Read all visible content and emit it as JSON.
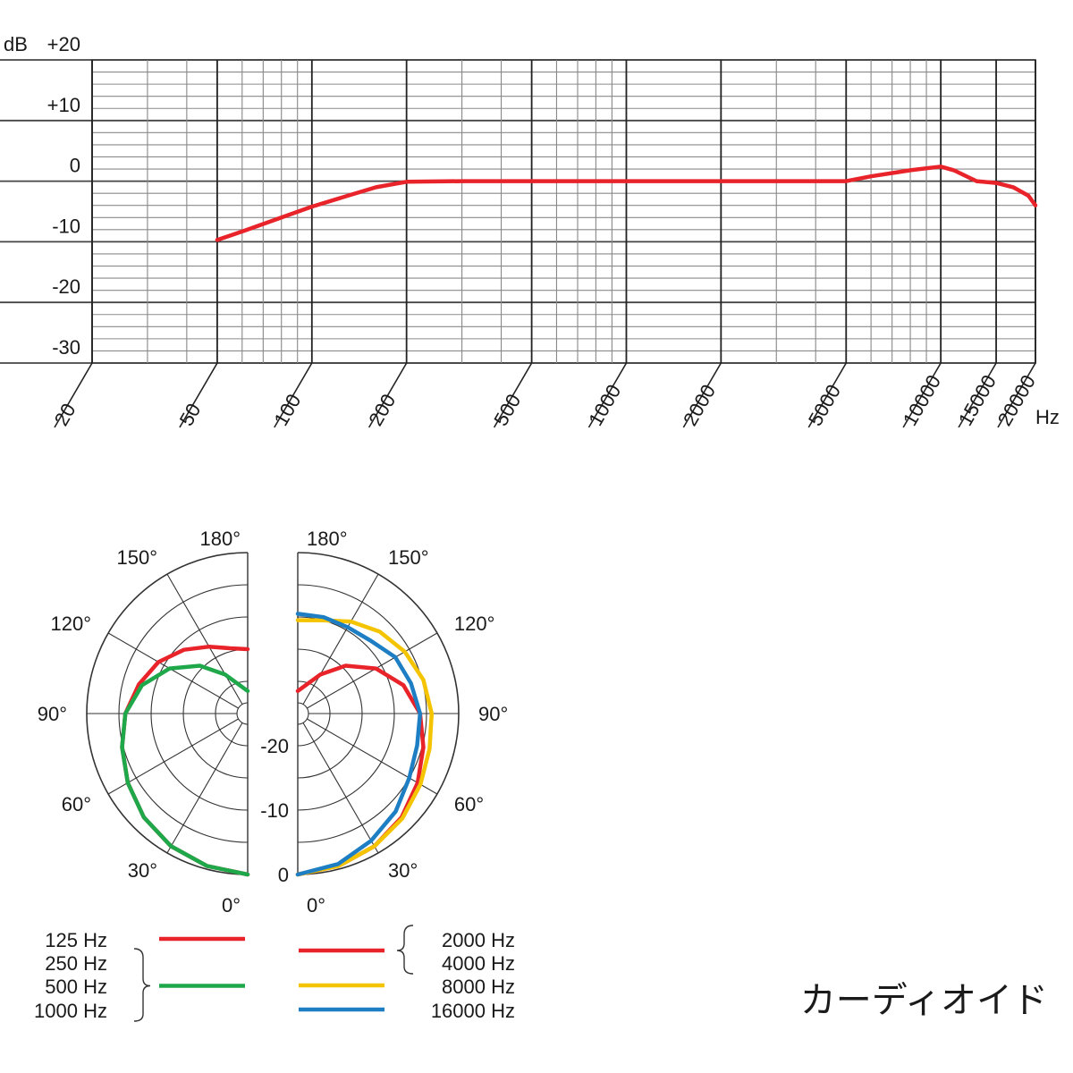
{
  "chart_data": [
    {
      "type": "line",
      "title": "",
      "ylabel": "dB",
      "xlabel": "Hz",
      "xscale": "log",
      "xlim": [
        20,
        20000
      ],
      "ylim": [
        -30,
        20
      ],
      "x_ticks": [
        20,
        50,
        100,
        200,
        500,
        1000,
        2000,
        5000,
        10000,
        15000,
        20000
      ],
      "x_tick_labels": [
        "20",
        "50",
        "100",
        "200",
        "500",
        "1000",
        "2000",
        "5000",
        "10000",
        "15000",
        "20000"
      ],
      "y_ticks": [
        20,
        10,
        0,
        -10,
        -20,
        -30
      ],
      "y_tick_labels": [
        "+20",
        "+10",
        "0",
        "-10",
        "-20",
        "-30"
      ],
      "grid": true,
      "series": [
        {
          "color": "#e8232a",
          "x": [
            50,
            60,
            80,
            100,
            130,
            160,
            200,
            300,
            500,
            1000,
            2000,
            5000,
            6000,
            8000,
            10000,
            11000,
            13000,
            15000,
            17000,
            19000,
            20000
          ],
          "y": [
            -9.7,
            -8.3,
            -6,
            -4.2,
            -2.4,
            -1,
            -0.1,
            0,
            0,
            0,
            0,
            0,
            0.8,
            1.8,
            2.4,
            1.8,
            0,
            -0.3,
            -1,
            -2.4,
            -4
          ]
        }
      ]
    },
    {
      "type": "polar",
      "title": "カーディオイド",
      "angle_labels_left": [
        "180°",
        "150°",
        "120°",
        "90°",
        "60°",
        "30°",
        "0°"
      ],
      "angle_labels_right": [
        "180°",
        "150°",
        "120°",
        "90°",
        "60°",
        "30°",
        "0°"
      ],
      "angle_label_values": [
        180,
        150,
        120,
        90,
        60,
        30,
        0
      ],
      "radial_labels": [
        "-20",
        "-10",
        "0"
      ],
      "radial_label_values": [
        -20,
        -10,
        0
      ],
      "series_left": [
        {
          "group": [
            "125 Hz"
          ],
          "color": "#e8232a",
          "angles": [
            0,
            15,
            30,
            45,
            60,
            75,
            90,
            105,
            120,
            135,
            150,
            165,
            180
          ],
          "r": [
            0,
            -0.5,
            -1.2,
            -2.2,
            -3.5,
            -4.8,
            -6,
            -7.5,
            -9,
            -11,
            -13,
            -14.5,
            -15
          ]
        },
        {
          "group": [
            "250 Hz",
            "500 Hz",
            "1000 Hz"
          ],
          "color": "#1ea84a",
          "angles": [
            0,
            15,
            30,
            45,
            60,
            75,
            90,
            105,
            120,
            135,
            150,
            165,
            180
          ],
          "r": [
            0,
            -0.5,
            -1.2,
            -2.2,
            -3.5,
            -4.8,
            -6,
            -8,
            -11,
            -14.5,
            -18,
            -20.5,
            -21.5
          ]
        }
      ],
      "series_right": [
        {
          "group": [
            "2000 Hz",
            "4000 Hz"
          ],
          "color": "#e8232a",
          "angles": [
            0,
            15,
            30,
            45,
            60,
            75,
            90,
            105,
            120,
            135,
            150,
            165,
            180
          ],
          "r": [
            0,
            -0.5,
            -1.2,
            -2.2,
            -3.5,
            -4.8,
            -6,
            -8,
            -11,
            -14.5,
            -18,
            -20.5,
            -21.5
          ]
        },
        {
          "group": [
            "8000 Hz"
          ],
          "color": "#f5c400",
          "angles": [
            0,
            15,
            30,
            45,
            60,
            75,
            90,
            105,
            120,
            135,
            150,
            165,
            180
          ],
          "r": [
            0,
            -0.5,
            -1.2,
            -2,
            -3,
            -3.8,
            -4.2,
            -4.8,
            -5.8,
            -7,
            -8.5,
            -10,
            -10.5
          ]
        },
        {
          "group": [
            "16000 Hz"
          ],
          "color": "#1d7ec4",
          "angles": [
            0,
            15,
            30,
            45,
            60,
            75,
            90,
            105,
            120,
            135,
            150,
            165,
            180
          ],
          "r": [
            0,
            -0.8,
            -2.2,
            -3.5,
            -5,
            -5.8,
            -6,
            -6.8,
            -7.5,
            -9,
            -9.5,
            -9.5,
            -9.5
          ]
        }
      ],
      "legend_left": {
        "groups": [
          {
            "labels": [
              "125 Hz"
            ],
            "color": "#e8232a"
          },
          {
            "labels": [
              "250 Hz",
              "500 Hz",
              "1000 Hz"
            ],
            "color": "#1ea84a"
          }
        ]
      },
      "legend_right": {
        "groups": [
          {
            "labels": [
              "2000 Hz",
              "4000 Hz"
            ],
            "color": "#e8232a"
          },
          {
            "labels": [
              "8000 Hz"
            ],
            "color": "#f5c400"
          },
          {
            "labels": [
              "16000 Hz"
            ],
            "color": "#1d7ec4"
          }
        ]
      }
    }
  ]
}
